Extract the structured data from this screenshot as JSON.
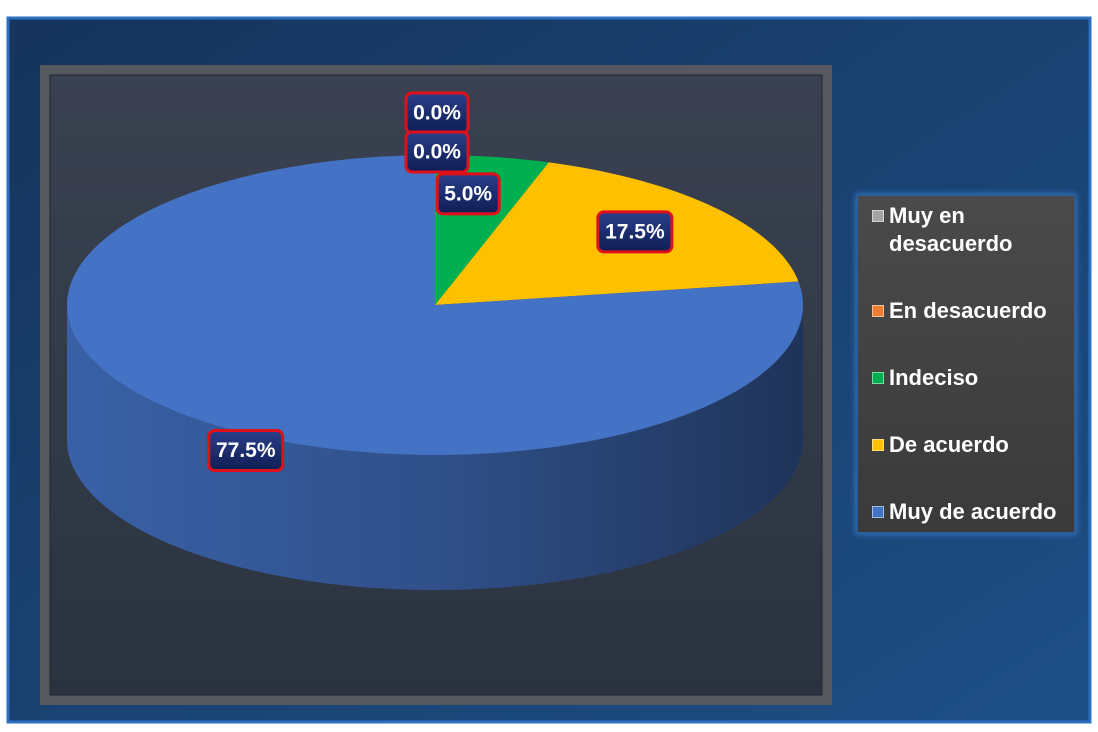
{
  "chart_data": {
    "type": "pie",
    "categories": [
      "Muy en desacuerdo",
      "En desacuerdo",
      "Indeciso",
      "De acuerdo",
      "Muy de acuerdo"
    ],
    "values": [
      0,
      0,
      5,
      17.5,
      77.5
    ],
    "value_labels": [
      "0.0%",
      "0.0%",
      "5.0%",
      "17.5%",
      "77.5%"
    ],
    "colors": [
      "#a5a5a5",
      "#ed7d31",
      "#00b050",
      "#ffc000",
      "#4472c4"
    ],
    "legend": "right"
  }
}
